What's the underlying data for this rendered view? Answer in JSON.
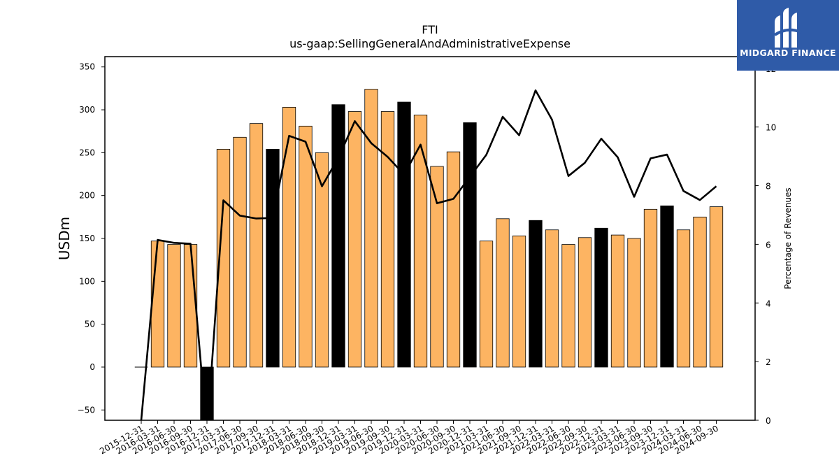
{
  "logo": {
    "text": "MIDGARD FINANCE"
  },
  "chart_data": {
    "type": "bar",
    "title": "FTI",
    "subtitle": "us-gaap:SellingGeneralAndAdministrativeExpense",
    "ylabel": "USDm",
    "y2label": "Percentage of Revenues",
    "ylim": [
      -62,
      362
    ],
    "y2lim": [
      0,
      12.4
    ],
    "yticks": [
      -50,
      0,
      50,
      100,
      150,
      200,
      250,
      300,
      350
    ],
    "y2ticks": [
      0,
      2,
      4,
      6,
      8,
      10,
      12
    ],
    "categories": [
      "2015-12-31",
      "2016-03-31",
      "2016-06-30",
      "2016-09-30",
      "2016-12-31",
      "2017-03-31",
      "2017-06-30",
      "2017-09-30",
      "2017-12-31",
      "2018-03-31",
      "2018-06-30",
      "2018-09-30",
      "2018-12-31",
      "2019-03-31",
      "2019-06-30",
      "2019-09-30",
      "2019-12-31",
      "2020-03-31",
      "2020-06-30",
      "2020-09-30",
      "2020-12-31",
      "2021-03-31",
      "2021-06-30",
      "2021-09-30",
      "2021-12-31",
      "2022-03-31",
      "2022-06-30",
      "2022-09-30",
      "2022-12-31",
      "2023-03-31",
      "2023-06-30",
      "2023-09-30",
      "2023-12-31",
      "2024-03-31",
      "2024-06-30",
      "2024-09-30"
    ],
    "series": [
      {
        "values": [
          0,
          147,
          143,
          143,
          -62,
          254,
          268,
          284,
          254,
          303,
          281,
          250,
          306,
          298,
          324,
          298,
          309,
          294,
          234,
          251,
          285,
          147,
          173,
          153,
          171,
          160,
          143,
          151,
          162,
          154,
          150,
          184,
          188,
          160,
          175,
          187
        ],
        "colors": [
          "#fdb462",
          "#fdb462",
          "#fdb462",
          "#fdb462",
          "#000000",
          "#fdb462",
          "#fdb462",
          "#fdb462",
          "#000000",
          "#fdb462",
          "#fdb462",
          "#fdb462",
          "#000000",
          "#fdb462",
          "#fdb462",
          "#fdb462",
          "#000000",
          "#fdb462",
          "#fdb462",
          "#fdb462",
          "#000000",
          "#fdb462",
          "#fdb462",
          "#fdb462",
          "#000000",
          "#fdb462",
          "#fdb462",
          "#fdb462",
          "#000000",
          "#fdb462",
          "#fdb462",
          "#fdb462",
          "#000000",
          "#fdb462",
          "#fdb462",
          "#fdb462"
        ]
      },
      {
        "axis": "right",
        "type": "line",
        "values": [
          0,
          6.15,
          6.05,
          6.02,
          -0.5,
          7.5,
          6.98,
          6.88,
          6.9,
          9.7,
          9.5,
          7.98,
          8.95,
          10.2,
          9.45,
          8.98,
          8.38,
          9.4,
          7.4,
          7.55,
          8.3,
          9.05,
          10.35,
          9.72,
          11.25,
          10.25,
          8.33,
          8.78,
          9.6,
          8.97,
          7.62,
          8.93,
          9.06,
          7.82,
          7.51,
          7.98
        ]
      }
    ],
    "bar_color": "#fdb462",
    "highlight_color": "#000000",
    "line_color": "#000000"
  }
}
